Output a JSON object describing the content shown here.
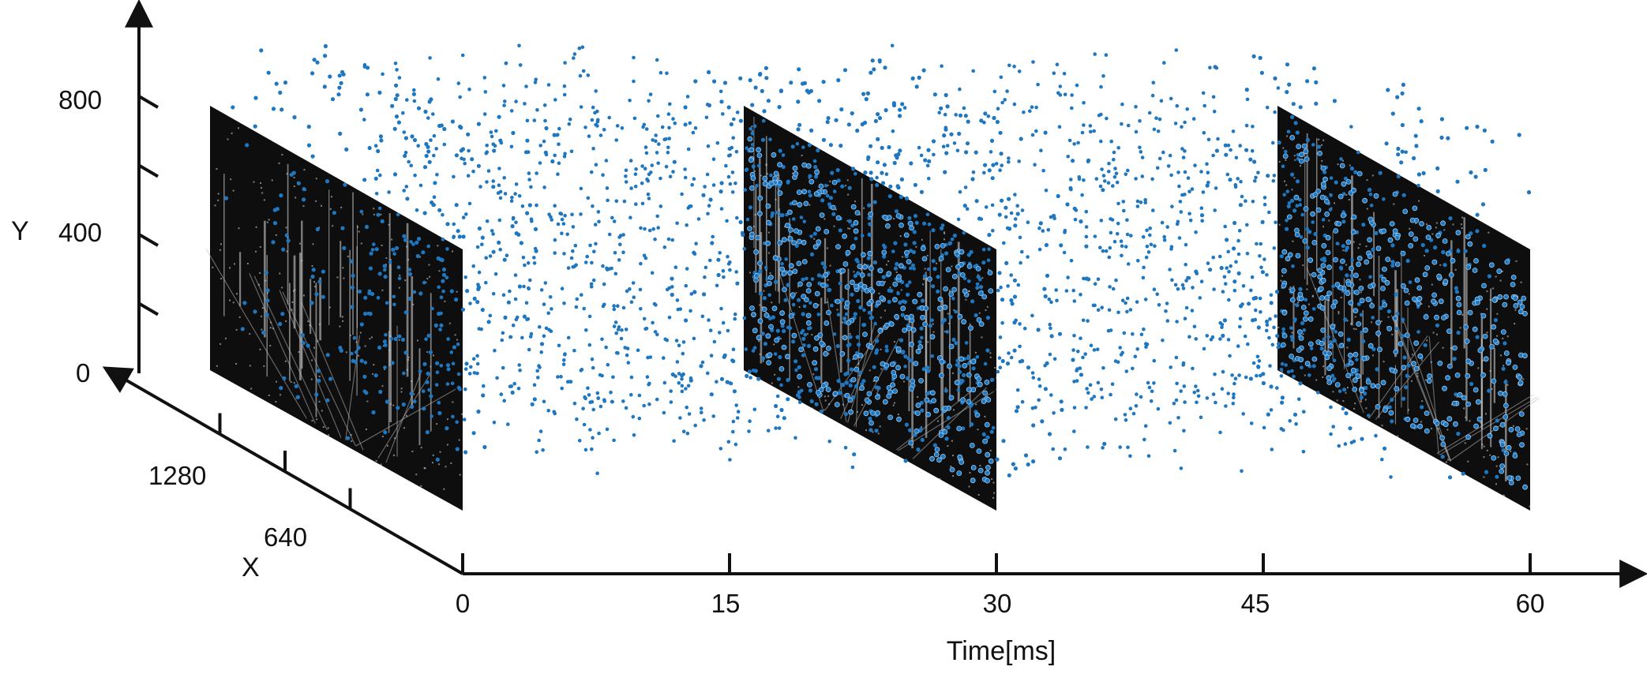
{
  "chart_data": {
    "type": "scatter",
    "title": "",
    "axes": {
      "time": {
        "label": "Time[ms]",
        "ticks": [
          0,
          15,
          30,
          45,
          60
        ],
        "tick_labels": [
          "0",
          "15",
          "30",
          "45",
          "60"
        ],
        "range": [
          0,
          60
        ]
      },
      "x": {
        "label": "X",
        "ticks": [
          0,
          640,
          1280
        ],
        "tick_labels": [
          "640",
          "1280"
        ],
        "range": [
          0,
          1280
        ]
      },
      "y": {
        "label": "Y",
        "ticks": [
          0,
          200,
          400,
          600,
          800
        ],
        "tick_labels": [
          "0",
          "400",
          "800"
        ],
        "range": [
          0,
          800
        ]
      }
    },
    "frames": [
      {
        "time": 0,
        "kind": "grayscale event frame (street scene)"
      },
      {
        "time": 30,
        "kind": "grayscale event frame (street scene)"
      },
      {
        "time": 60,
        "kind": "grayscale event frame (street scene)"
      }
    ],
    "series": [
      {
        "kind": "event points",
        "time_range": [
          0,
          60
        ],
        "color": "#1f77c0"
      }
    ],
    "grid": false,
    "legend": "none"
  },
  "colors": {
    "events": "#1f77c0",
    "axis": "#111111",
    "frame_bg": "#0e0e0e"
  }
}
